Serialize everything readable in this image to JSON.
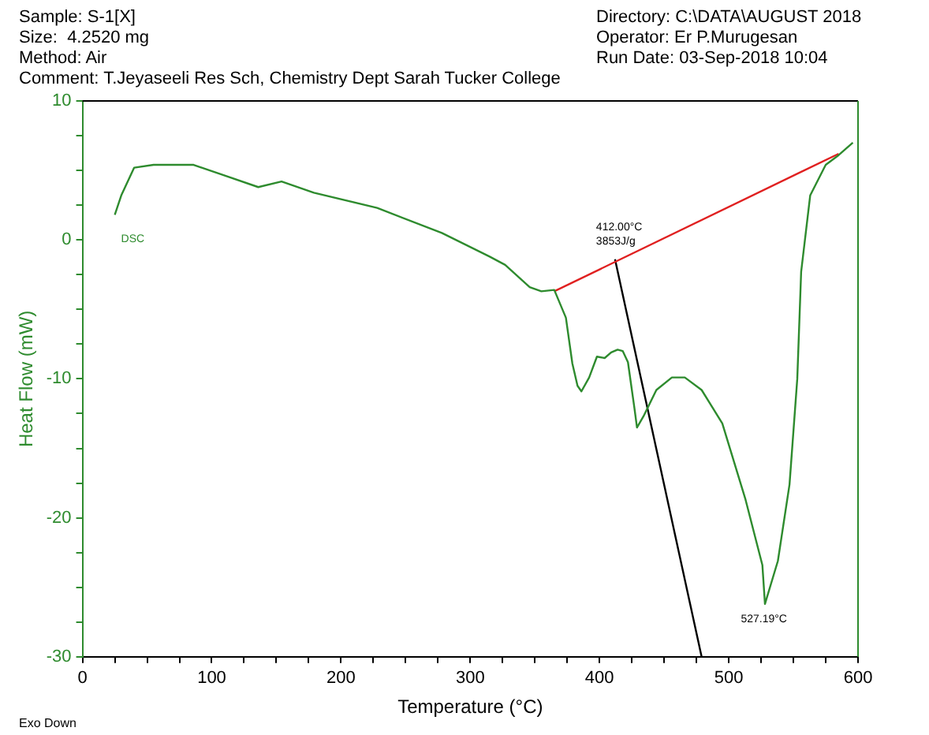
{
  "chart_data": {
    "type": "line",
    "xlabel": "Temperature (°C)",
    "ylabel": "Heat Flow (mW)",
    "xlim": [
      0,
      600
    ],
    "ylim": [
      -30,
      10
    ],
    "xticks": [
      0,
      {
        "value": 25,
        "label": null
      },
      {
        "value": 50,
        "label": null
      },
      {
        "value": 75,
        "label": null
      },
      100,
      {
        "value": 125,
        "label": null
      },
      {
        "value": 150,
        "label": null
      },
      {
        "value": 175,
        "label": null
      },
      200,
      {
        "value": 225,
        "label": null
      },
      {
        "value": 250,
        "label": null
      },
      {
        "value": 275,
        "label": null
      },
      300,
      {
        "value": 325,
        "label": null
      },
      {
        "value": 350,
        "label": null
      },
      {
        "value": 375,
        "label": null
      },
      400,
      {
        "value": 425,
        "label": null
      },
      {
        "value": 450,
        "label": null
      },
      {
        "value": 475,
        "label": null
      },
      500,
      {
        "value": 525,
        "label": null
      },
      {
        "value": 550,
        "label": null
      },
      {
        "value": 575,
        "label": null
      },
      600
    ],
    "yticks": [
      -30,
      {
        "value": -27.5,
        "label": null
      },
      {
        "value": -25,
        "label": null
      },
      {
        "value": -22.5,
        "label": null
      },
      -20,
      {
        "value": -17.5,
        "label": null
      },
      {
        "value": -15,
        "label": null
      },
      {
        "value": -12.5,
        "label": null
      },
      -10,
      {
        "value": -7.5,
        "label": null
      },
      {
        "value": -5,
        "label": null
      },
      {
        "value": -2.5,
        "label": null
      },
      0,
      {
        "value": 2.5,
        "label": null
      },
      {
        "value": 5,
        "label": null
      },
      {
        "value": 7.5,
        "label": null
      },
      10
    ],
    "grid": false,
    "legend": false,
    "marker": "none",
    "line_style": "solid",
    "series": [
      {
        "name": "DSC",
        "color": "#2e8b2e",
        "x": [
          25,
          30,
          40,
          55,
          86,
          111,
          136,
          154,
          179,
          228,
          278,
          315,
          327,
          346,
          355,
          365,
          374,
          379,
          383,
          386,
          392,
          398,
          404,
          409,
          414,
          418,
          422,
          427,
          429,
          434,
          444,
          456,
          466,
          479,
          495,
          513,
          526,
          528,
          538,
          547,
          553,
          556,
          563,
          575,
          585,
          596
        ],
        "values": [
          1.8,
          3.2,
          5.2,
          5.4,
          5.4,
          4.6,
          3.8,
          4.2,
          3.4,
          2.3,
          0.5,
          -1.2,
          -1.8,
          -3.4,
          -3.7,
          -3.6,
          -5.6,
          -8.9,
          -10.5,
          -10.9,
          -9.9,
          -8.4,
          -8.5,
          -8.1,
          -7.9,
          -8.0,
          -8.8,
          -12.1,
          -13.5,
          -12.7,
          -10.8,
          -9.9,
          -9.9,
          -10.8,
          -13.2,
          -18.7,
          -23.4,
          -26.2,
          -23.1,
          -17.6,
          -10,
          -2.3,
          3.2,
          5.4,
          6.1,
          7.0
        ]
      },
      {
        "color": "#e02020",
        "x": [
          365,
          585
        ],
        "values": [
          -3.7,
          6.2
        ]
      },
      {
        "color": "#000000",
        "x": [
          412,
          479
        ],
        "values": [
          -1.4,
          -30
        ]
      }
    ],
    "annotations": [
      "Sample: S-1[X]",
      "Size:  4.2520 mg",
      "Method: Air",
      "Comment: T.Jeyaseeli Res Sch, Chemistry Dept Sarah Tucker College",
      "Directory: C:\\DATA\\AUGUST 2018",
      "Operator: Er P.Murugesan",
      "Run Date: 03-Sep-2018 10:04",
      "Exo Down",
      {
        "text": "412.00°C\n3853J/g",
        "x": 412,
        "y": -1.4
      },
      {
        "text": "527.19°C",
        "x": 527.19,
        "y": -26.2
      }
    ]
  }
}
